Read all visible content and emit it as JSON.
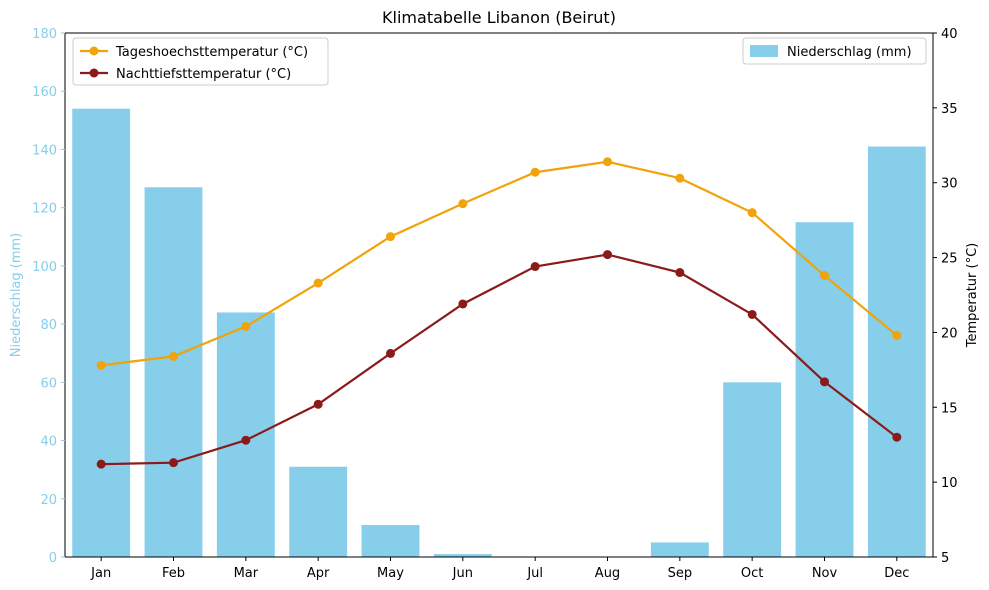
{
  "chart_data": {
    "type": "bar+line",
    "title": "Klimatabelle Libanon (Beirut)",
    "categories": [
      "Jan",
      "Feb",
      "Mar",
      "Apr",
      "May",
      "Jun",
      "Jul",
      "Aug",
      "Sep",
      "Oct",
      "Nov",
      "Dec"
    ],
    "bar_series": {
      "name": "Niederschlag (mm)",
      "axis": "left",
      "color": "#87CEEB",
      "values": [
        154,
        127,
        84,
        31,
        11,
        1,
        0,
        0,
        5,
        60,
        115,
        141
      ]
    },
    "line_series": [
      {
        "name": "Tageshoechsttemperatur (°C)",
        "axis": "right",
        "color": "#F0A30A",
        "values": [
          17.8,
          18.4,
          20.4,
          23.3,
          26.4,
          28.6,
          30.7,
          31.4,
          30.3,
          28.0,
          23.8,
          19.8
        ]
      },
      {
        "name": "Nachttiefsttemperatur (°C)",
        "axis": "right",
        "color": "#8B1A1A",
        "values": [
          11.2,
          11.3,
          12.8,
          15.2,
          18.6,
          21.9,
          24.4,
          25.2,
          24.0,
          21.2,
          16.7,
          13.0
        ]
      }
    ],
    "ylabel_left": "Niederschlag (mm)",
    "ylabel_right": "Temperatur (°C)",
    "ylim_left": [
      0,
      180
    ],
    "ylim_right": [
      5,
      40
    ],
    "yticks_left": [
      "0",
      "20",
      "40",
      "60",
      "80",
      "100",
      "120",
      "140",
      "160",
      "180"
    ],
    "yticks_right": [
      "5",
      "10",
      "15",
      "20",
      "25",
      "30",
      "35",
      "40"
    ],
    "left_axis_color": "#87CEEB",
    "grid": false,
    "legend_lines_position": "top-left",
    "legend_bars_position": "top-right"
  }
}
